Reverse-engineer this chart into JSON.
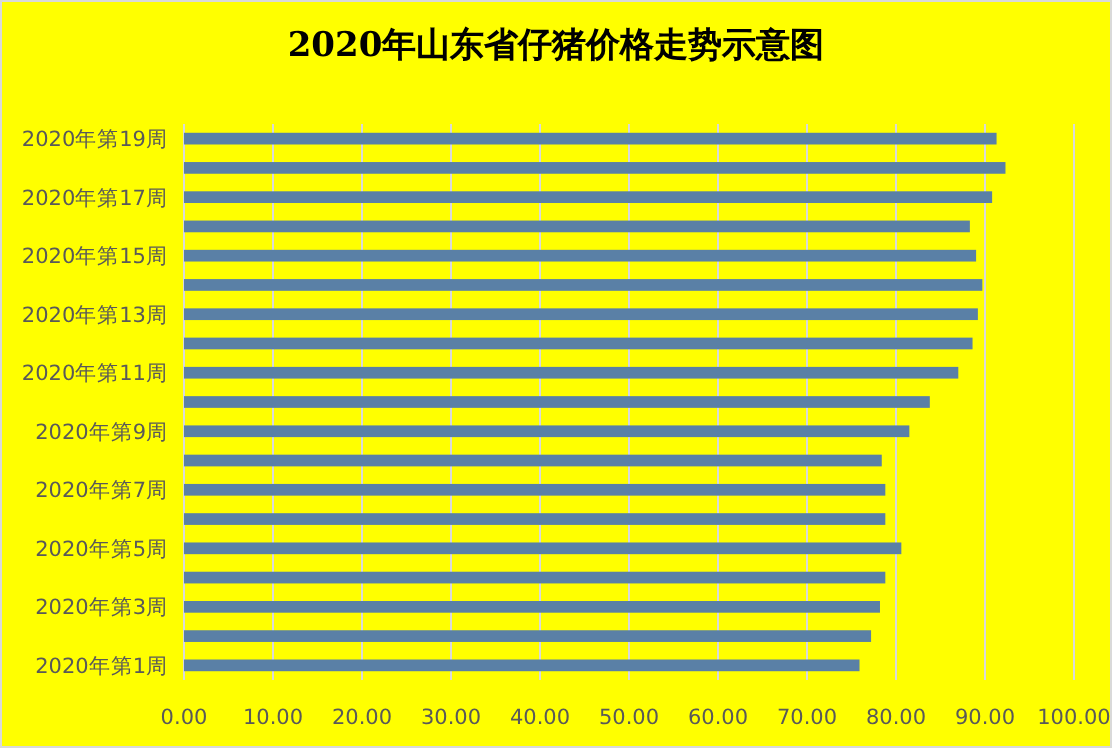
{
  "chart_data": {
    "type": "bar",
    "orientation": "horizontal",
    "title": "2020年山东省仔猪价格走势示意图",
    "categories": [
      "2020年第19周",
      null,
      "2020年第17周",
      null,
      "2020年第15周",
      null,
      "2020年第13周",
      null,
      "2020年第11周",
      null,
      "2020年第9周",
      null,
      "2020年第7周",
      null,
      "2020年第5周",
      null,
      "2020年第3周",
      null,
      "2020年第1周"
    ],
    "values": [
      91.3,
      92.3,
      90.8,
      88.3,
      89.0,
      89.7,
      89.2,
      88.6,
      87.0,
      83.8,
      81.5,
      78.4,
      78.8,
      78.8,
      80.6,
      78.8,
      78.2,
      77.2,
      75.9
    ],
    "color": "#5a80a6",
    "xlim": [
      0,
      100
    ],
    "xticks": [
      {
        "value": 0,
        "label": "0.00"
      },
      {
        "value": 10,
        "label": "10.00"
      },
      {
        "value": 20,
        "label": "20.00"
      },
      {
        "value": 30,
        "label": "30.00"
      },
      {
        "value": 40,
        "label": "40.00"
      },
      {
        "value": 50,
        "label": "50.00"
      },
      {
        "value": 60,
        "label": "60.00"
      },
      {
        "value": 70,
        "label": "70.00"
      },
      {
        "value": 80,
        "label": "80.00"
      },
      {
        "value": 90,
        "label": "90.00"
      },
      {
        "value": 100,
        "label": "100.00"
      }
    ],
    "grid": "x"
  }
}
